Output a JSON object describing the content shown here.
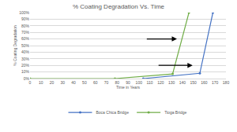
{
  "chart_data": {
    "type": "line",
    "title": "% Coating Degradation Vs. Time",
    "x_label": "Time in Years",
    "y_label": "% Coating Degradation",
    "series": [
      {
        "name": "Boca Chica Bridge",
        "color": "#4472c4",
        "x": [
          104,
          156,
          168
        ],
        "values": [
          0,
          8,
          100
        ]
      },
      {
        "name": "Tioga Bridge",
        "color": "#70ad47",
        "x": [
          0,
          78,
          131,
          146
        ],
        "values": [
          0,
          0,
          7,
          100
        ]
      }
    ],
    "xlim": [
      0,
      180
    ],
    "xticks": [
      0,
      10,
      20,
      30,
      40,
      50,
      60,
      70,
      80,
      90,
      100,
      110,
      120,
      130,
      140,
      150,
      160,
      170,
      180
    ],
    "ylim": [
      0,
      100
    ],
    "yticks": [
      {
        "value": 0,
        "label": "0%"
      },
      {
        "value": 10,
        "label": "10%"
      },
      {
        "value": 20,
        "label": "20%"
      },
      {
        "value": 30,
        "label": "30%"
      },
      {
        "value": 40,
        "label": "40%"
      },
      {
        "value": 50,
        "label": "50%"
      },
      {
        "value": 60,
        "label": "60%"
      },
      {
        "value": 70,
        "label": "70%"
      },
      {
        "value": 80,
        "label": "80%"
      },
      {
        "value": 90,
        "label": "90%"
      },
      {
        "value": 100,
        "label": "100%"
      }
    ],
    "grid": true,
    "legend": "bottom",
    "marker": "circle"
  }
}
